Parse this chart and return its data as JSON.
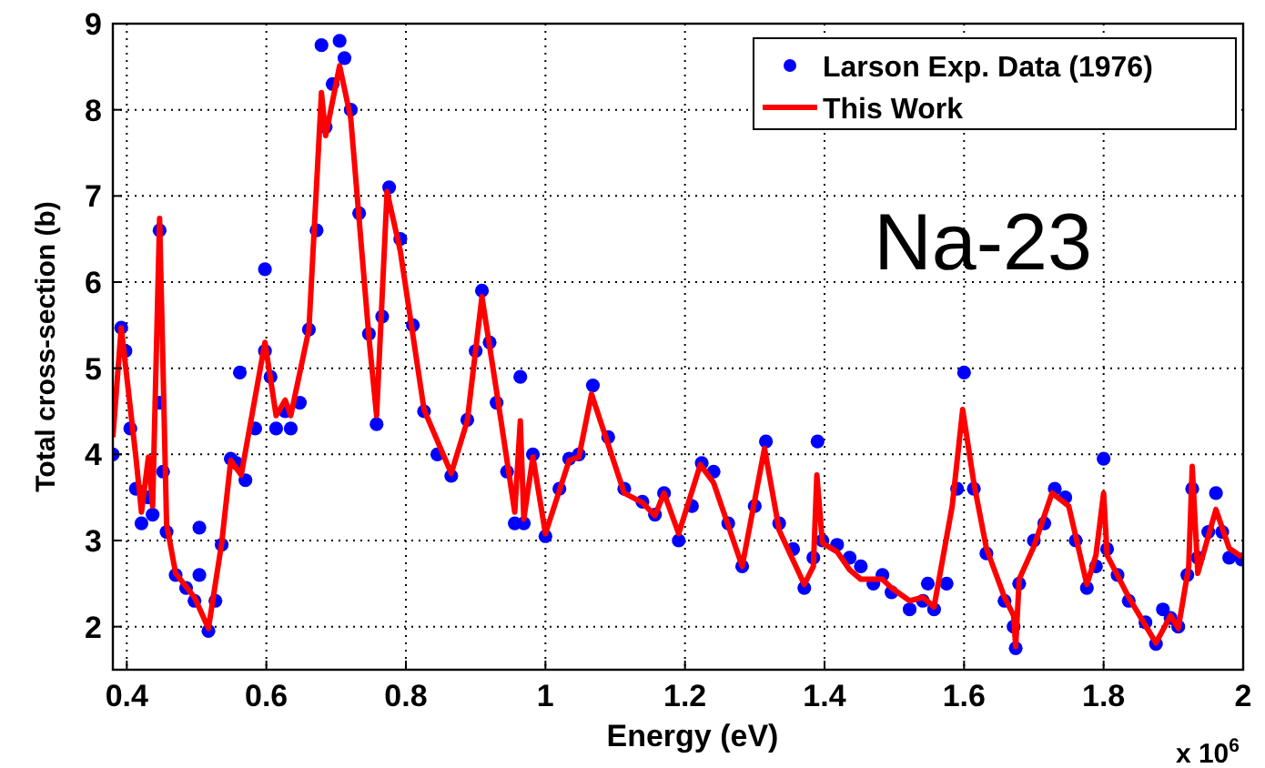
{
  "chart_data": {
    "type": "line",
    "xlabel": "Energy (eV)",
    "ylabel": "Total cross-section (b)",
    "annotations": [
      "Na-23",
      "x 10$^{6}$"
    ],
    "xlim": [
      0.38,
      2
    ],
    "xticks": [
      0.4,
      0.6,
      0.8,
      1,
      1.2,
      1.4,
      1.6,
      1.8,
      2
    ],
    "ylim": [
      1.5,
      9
    ],
    "yticks": [
      2,
      3,
      4,
      5,
      6,
      7,
      8,
      9
    ],
    "grid": true,
    "legend": "top right",
    "series": [
      {
        "name": "Larson Exp. Data (1976)",
        "type": "scatter",
        "marker": "circle",
        "color": "#0000ff",
        "x": [
          0.38,
          0.392,
          0.398,
          0.405,
          0.413,
          0.421,
          0.431,
          0.437,
          0.447,
          0.447,
          0.452,
          0.457,
          0.47,
          0.485,
          0.497,
          0.504,
          0.504,
          0.517,
          0.527,
          0.536,
          0.549,
          0.557,
          0.562,
          0.57,
          0.584,
          0.598,
          0.598,
          0.606,
          0.614,
          0.627,
          0.635,
          0.648,
          0.661,
          0.672,
          0.679,
          0.685,
          0.695,
          0.705,
          0.712,
          0.721,
          0.733,
          0.747,
          0.758,
          0.766,
          0.776,
          0.792,
          0.81,
          0.826,
          0.845,
          0.865,
          0.888,
          0.9,
          0.909,
          0.92,
          0.93,
          0.945,
          0.956,
          0.964,
          0.969,
          0.982,
          1.0,
          1.02,
          1.034,
          1.048,
          1.068,
          1.09,
          1.113,
          1.139,
          1.157,
          1.17,
          1.191,
          1.21,
          1.224,
          1.241,
          1.262,
          1.282,
          1.3,
          1.316,
          1.335,
          1.355,
          1.371,
          1.384,
          1.39,
          1.397,
          1.418,
          1.436,
          1.452,
          1.47,
          1.483,
          1.496,
          1.522,
          1.541,
          1.548,
          1.557,
          1.575,
          1.59,
          1.6,
          1.614,
          1.632,
          1.658,
          1.671,
          1.674,
          1.679,
          1.7,
          1.715,
          1.73,
          1.745,
          1.76,
          1.776,
          1.789,
          1.8,
          1.805,
          1.82,
          1.836,
          1.86,
          1.875,
          1.885,
          1.896,
          1.907,
          1.92,
          1.927,
          1.935,
          1.95,
          1.961,
          1.97,
          1.98,
          1.998
        ],
        "values": [
          4.0,
          5.47,
          5.2,
          4.3,
          3.6,
          3.2,
          3.5,
          3.3,
          6.6,
          4.6,
          3.8,
          3.1,
          2.6,
          2.45,
          2.3,
          2.6,
          3.15,
          1.95,
          2.3,
          2.95,
          3.95,
          3.9,
          4.95,
          3.7,
          4.3,
          5.2,
          6.15,
          4.9,
          4.3,
          4.5,
          4.3,
          4.6,
          5.45,
          6.6,
          8.75,
          7.8,
          8.3,
          8.8,
          8.6,
          8.0,
          6.8,
          5.4,
          4.35,
          5.6,
          7.1,
          6.5,
          5.5,
          4.5,
          4.0,
          3.75,
          4.4,
          5.2,
          5.9,
          5.3,
          4.6,
          3.8,
          3.2,
          4.9,
          3.2,
          4.0,
          3.05,
          3.6,
          3.95,
          4.0,
          4.8,
          4.2,
          3.6,
          3.45,
          3.3,
          3.55,
          3.0,
          3.4,
          3.9,
          3.8,
          3.2,
          2.7,
          3.4,
          4.15,
          3.2,
          2.9,
          2.45,
          2.8,
          4.15,
          3.0,
          2.95,
          2.8,
          2.7,
          2.5,
          2.6,
          2.4,
          2.2,
          2.3,
          2.5,
          2.2,
          2.5,
          3.6,
          4.95,
          3.6,
          2.85,
          2.3,
          2.0,
          1.75,
          2.5,
          3.0,
          3.2,
          3.6,
          3.5,
          3.0,
          2.45,
          2.7,
          3.95,
          2.9,
          2.6,
          2.3,
          2.05,
          1.8,
          2.2,
          2.1,
          2.0,
          2.6,
          3.6,
          2.8,
          3.1,
          3.55,
          3.1,
          2.8,
          2.78
        ]
      },
      {
        "name": "This Work",
        "type": "line",
        "marker": "none",
        "line_style": "solid",
        "color": "#ff0000",
        "x": [
          0.38,
          0.392,
          0.413,
          0.421,
          0.431,
          0.437,
          0.447,
          0.457,
          0.47,
          0.497,
          0.517,
          0.536,
          0.549,
          0.564,
          0.598,
          0.614,
          0.627,
          0.635,
          0.661,
          0.679,
          0.685,
          0.705,
          0.721,
          0.747,
          0.758,
          0.773,
          0.792,
          0.826,
          0.865,
          0.888,
          0.909,
          0.93,
          0.956,
          0.964,
          0.969,
          0.982,
          1.0,
          1.034,
          1.048,
          1.066,
          1.113,
          1.139,
          1.157,
          1.17,
          1.191,
          1.222,
          1.241,
          1.282,
          1.314,
          1.335,
          1.371,
          1.384,
          1.389,
          1.397,
          1.418,
          1.436,
          1.452,
          1.483,
          1.496,
          1.522,
          1.541,
          1.557,
          1.583,
          1.598,
          1.614,
          1.632,
          1.658,
          1.671,
          1.674,
          1.679,
          1.7,
          1.726,
          1.75,
          1.776,
          1.789,
          1.8,
          1.805,
          1.836,
          1.875,
          1.896,
          1.907,
          1.922,
          1.927,
          1.935,
          1.961,
          1.98,
          1.998
        ],
        "values": [
          4.2,
          5.47,
          3.97,
          3.33,
          3.97,
          3.4,
          6.74,
          3.19,
          2.62,
          2.34,
          1.98,
          2.97,
          3.93,
          3.76,
          5.3,
          4.45,
          4.63,
          4.45,
          5.45,
          8.2,
          7.7,
          8.51,
          7.9,
          5.36,
          4.45,
          7.05,
          6.36,
          4.52,
          3.78,
          4.39,
          5.83,
          4.73,
          3.33,
          4.39,
          3.25,
          3.97,
          3.08,
          3.93,
          3.97,
          4.7,
          3.55,
          3.44,
          3.29,
          3.55,
          3.08,
          3.88,
          3.67,
          2.7,
          4.07,
          3.12,
          2.49,
          2.7,
          3.76,
          2.97,
          2.87,
          2.66,
          2.55,
          2.55,
          2.45,
          2.3,
          2.34,
          2.23,
          3.4,
          4.52,
          3.67,
          2.91,
          2.34,
          2.13,
          1.77,
          2.55,
          2.93,
          3.55,
          3.4,
          2.49,
          2.83,
          3.55,
          2.83,
          2.34,
          1.81,
          2.13,
          1.98,
          2.7,
          3.86,
          2.62,
          3.36,
          2.91,
          2.81
        ]
      }
    ]
  }
}
